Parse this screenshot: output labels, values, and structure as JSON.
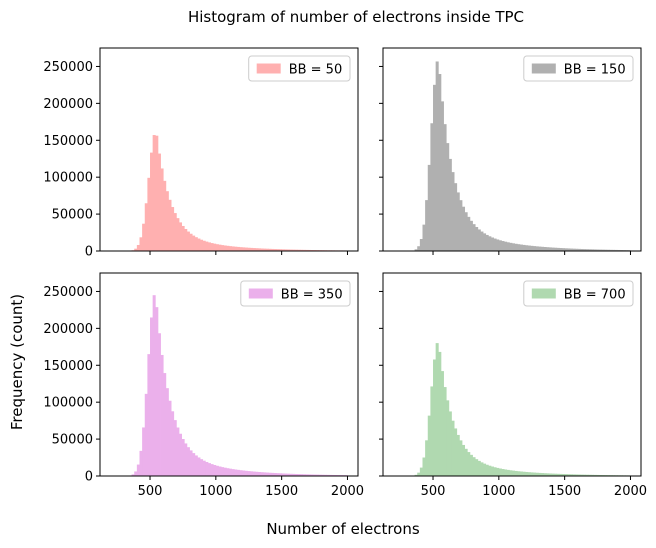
{
  "figure": {
    "title": "Histogram of number of electrons inside TPC",
    "xlabel": "Number of electrons",
    "ylabel": "Frequency (count)"
  },
  "chart_data": [
    {
      "type": "bar",
      "legend": "BB = 50",
      "color": "#ffb0b0",
      "x_range": [
        200,
        2000
      ],
      "xticks": [
        500,
        1000,
        1500,
        2000
      ],
      "ylim": [
        0,
        275000
      ],
      "yticks": [
        0,
        50000,
        100000,
        150000,
        200000,
        250000
      ],
      "peak": 163000,
      "mode": 545,
      "legend_loc": "upper right",
      "show_x_tick_labels": false,
      "show_y_tick_labels": true
    },
    {
      "type": "bar",
      "legend": "BB = 150",
      "color": "#b0b0b0",
      "x_range": [
        200,
        2000
      ],
      "xticks": [
        500,
        1000,
        1500,
        2000
      ],
      "ylim": [
        0,
        275000
      ],
      "yticks": [
        0,
        50000,
        100000,
        150000,
        200000,
        250000
      ],
      "peak": 261000,
      "mode": 540,
      "legend_loc": "upper right",
      "show_x_tick_labels": false,
      "show_y_tick_labels": false
    },
    {
      "type": "bar",
      "legend": "BB = 350",
      "color": "#ebb0eb",
      "x_range": [
        200,
        2000
      ],
      "xticks": [
        500,
        1000,
        1500,
        2000
      ],
      "xtick_labels": [
        "500",
        "1000",
        "1500",
        "2000"
      ],
      "ylim": [
        0,
        275000
      ],
      "yticks": [
        0,
        50000,
        100000,
        150000,
        200000,
        250000
      ],
      "peak": 249000,
      "mode": 540,
      "legend_loc": "upper right",
      "show_x_tick_labels": true,
      "show_y_tick_labels": true
    },
    {
      "type": "bar",
      "legend": "BB = 700",
      "color": "#b0d9b0",
      "x_range": [
        200,
        2000
      ],
      "xticks": [
        500,
        1000,
        1500,
        2000
      ],
      "xtick_labels": [
        "500",
        "1000",
        "1500",
        "2000"
      ],
      "ylim": [
        0,
        275000
      ],
      "yticks": [
        0,
        50000,
        100000,
        150000,
        200000,
        250000
      ],
      "peak": 183000,
      "mode": 540,
      "legend_loc": "upper right",
      "show_x_tick_labels": true,
      "show_y_tick_labels": false
    }
  ]
}
